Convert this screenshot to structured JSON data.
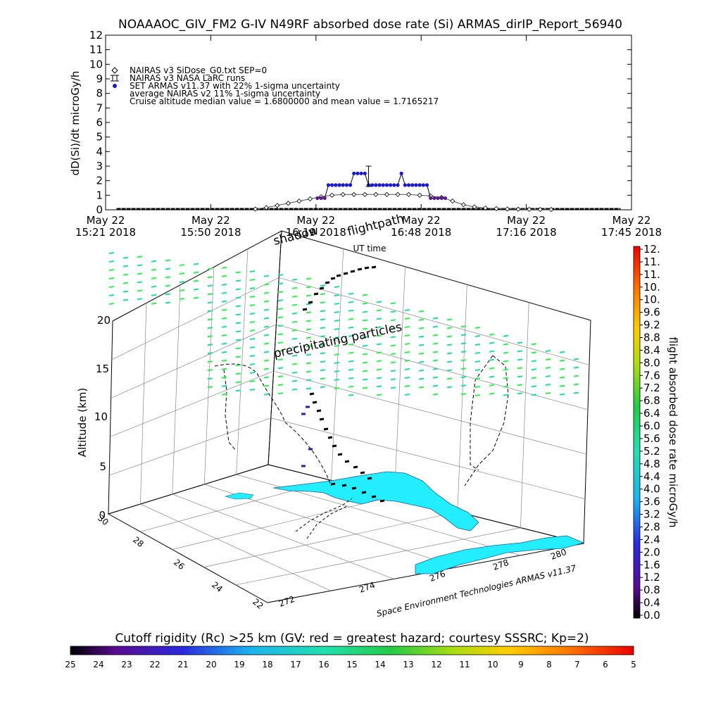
{
  "header": {
    "title": "NOAAAOC_GIV_FM2 G-IV    N49RF  absorbed dose rate (Si) ARMAS_dirIP_Report_56940"
  },
  "legend": {
    "entries": [
      {
        "symbol": "diamond",
        "label": "NAIRAS v3 SiDose_G0.txt SEP=0"
      },
      {
        "symbol": "errorbar",
        "label": "NAIRAS v3 NASA LaRC runs"
      },
      {
        "symbol": "dot",
        "color": "#1a1acc",
        "label": "SET ARMAS v11.37 with 22% 1-sigma uncertainty"
      },
      {
        "symbol": "none",
        "label": "average NAIRAS v2 11% 1-sigma uncertainty"
      },
      {
        "symbol": "none",
        "label": "Cruise altitude median value = 1.6800000 and mean value = 1.7165217"
      }
    ]
  },
  "chart_data": [
    {
      "type": "line",
      "title": "NOAAAOC_GIV_FM2 G-IV    N49RF  absorbed dose rate (Si) ARMAS_dirIP_Report_56940",
      "xlabel": "UT time",
      "ylabel": "dD(Si)/dt microGy/h",
      "ylim": [
        0,
        12
      ],
      "yticks": [
        0,
        1,
        2,
        3,
        4,
        5,
        6,
        7,
        8,
        9,
        10,
        11,
        12
      ],
      "xlim_minutes": [
        0,
        144
      ],
      "xticks": [
        {
          "top": "May 22",
          "bottom": "15:21 2018"
        },
        {
          "top": "May 22",
          "bottom": "15:50 2018"
        },
        {
          "top": "May 22",
          "bottom": "16:19 2018"
        },
        {
          "top": "May 22",
          "bottom": "16:48 2018"
        },
        {
          "top": "May 22",
          "bottom": "17:16 2018"
        },
        {
          "top": "May 22",
          "bottom": "17:45 2018"
        }
      ],
      "series": [
        {
          "name": "NAIRAS v3 SiDose_G0.txt SEP=0",
          "color": "#000000",
          "marker": "diamond",
          "x": [
            41,
            44,
            47,
            50,
            53,
            56,
            59,
            62,
            65,
            68,
            71,
            74,
            77,
            80,
            83,
            86,
            89,
            92,
            95,
            98,
            101,
            104,
            107,
            110,
            113,
            116,
            119,
            122
          ],
          "y": [
            0.05,
            0.15,
            0.3,
            0.45,
            0.6,
            0.75,
            0.9,
            1.0,
            1.05,
            1.05,
            1.05,
            1.05,
            1.05,
            1.05,
            1.05,
            1.0,
            0.95,
            0.85,
            0.6,
            0.35,
            0.2,
            0.12,
            0.08,
            0.05,
            0.04,
            0.03,
            0.02,
            0.02
          ]
        },
        {
          "name": "SET ARMAS v11.37 with 22% 1-sigma uncertainty",
          "color": "#1a1acc",
          "marker": "dot",
          "x": [
            58,
            59,
            60,
            61,
            62,
            63,
            64,
            65,
            66,
            67,
            68,
            69,
            70,
            71,
            72,
            73,
            74,
            75,
            76,
            77,
            78,
            79,
            80,
            81,
            82,
            83,
            84,
            85,
            86,
            87,
            88,
            89,
            90,
            91,
            92,
            93
          ],
          "y": [
            0.8,
            0.8,
            0.8,
            1.7,
            1.7,
            1.7,
            1.7,
            1.7,
            1.7,
            1.7,
            2.5,
            2.5,
            2.5,
            2.5,
            1.7,
            1.7,
            1.7,
            1.7,
            1.7,
            1.7,
            1.7,
            1.7,
            1.7,
            2.5,
            1.7,
            1.7,
            1.7,
            1.7,
            1.7,
            1.7,
            1.7,
            0.8,
            0.8,
            0.8,
            0.8,
            0.8
          ]
        }
      ],
      "error_bar": {
        "x": 72,
        "y": 2.3,
        "low": 1.6,
        "high": 3.0
      },
      "baseline_value": 0
    },
    {
      "type": "scatter",
      "zlabel": "Altitude (km)",
      "zticks": [
        0,
        5,
        10,
        15,
        20
      ],
      "lat_ticks": [
        30,
        28,
        26,
        24,
        22
      ],
      "lon_ticks": [
        272,
        274,
        276,
        278,
        280
      ],
      "annotations": [
        "flightpath",
        "shadow",
        "precipitating particles"
      ],
      "credit": "Space Environment Technologies ARMAS v11.37"
    }
  ],
  "colorbar_right": {
    "label": "flight absorbed dose rate microGy/h",
    "ticks": [
      "12.",
      "11.",
      "11.",
      "10.",
      "10.",
      "9.6",
      "9.2",
      "8.8",
      "8.4",
      "8.0",
      "7.6",
      "7.2",
      "6.8",
      "6.4",
      "6.0",
      "5.6",
      "5.2",
      "4.8",
      "4.4",
      "4.0",
      "3.6",
      "3.2",
      "2.8",
      "2.4",
      "2.0",
      "1.6",
      "1.2",
      "0.8",
      "0.4",
      "0.0"
    ]
  },
  "colorbar_bottom": {
    "label": "Cutoff rigidity (Rc) >25 km (GV: red = greatest hazard; courtesy SSSRC; Kp=2)",
    "ticks": [
      "25",
      "24",
      "23",
      "22",
      "21",
      "20",
      "19",
      "18",
      "17",
      "16",
      "15",
      "14",
      "13",
      "12",
      "11",
      "10",
      "9",
      "8",
      "7",
      "6",
      "5"
    ]
  },
  "colors": {
    "land": "#22eeff",
    "particles": "#22dd99",
    "arms_series": "#1a1acc"
  }
}
